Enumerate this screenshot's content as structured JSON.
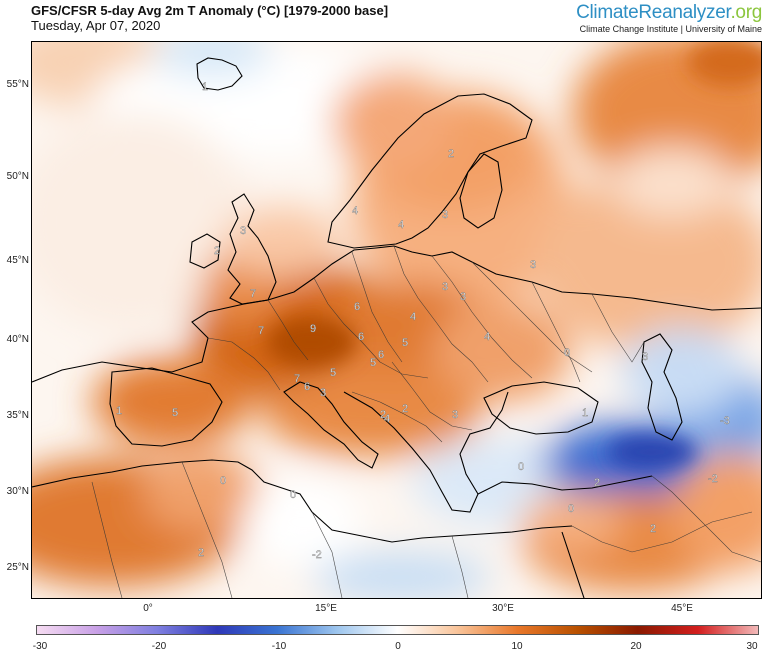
{
  "header": {
    "title": "GFS/CFSR 5-day Avg 2m T Anomaly (°C) [1979-2000 base]",
    "date": "Tuesday, Apr 07, 2020",
    "brand_part1": "Climate",
    "brand_part2": "Reanalyzer",
    "brand_part3": ".org",
    "brand_sub": "Climate Change Institute | University of Maine"
  },
  "map": {
    "lat_labels": [
      "55°N",
      "50°N",
      "45°N",
      "40°N",
      "35°N",
      "30°N",
      "25°N"
    ],
    "lon_labels": [
      "0°",
      "15°E",
      "30°E",
      "45°E"
    ],
    "anomaly_labels": [
      "1",
      "2",
      "3",
      "4",
      "4",
      "3",
      "2",
      "3",
      "7",
      "9",
      "6",
      "4",
      "3",
      "3",
      "7",
      "6",
      "6",
      "5",
      "4",
      "7",
      "6",
      "5",
      "5",
      "3",
      "2",
      "2",
      "3",
      "4",
      "0",
      "5",
      "1",
      "0",
      "0",
      "-2",
      "2",
      "-2",
      "2",
      "0",
      "2",
      "1",
      "0",
      "-3",
      "3"
    ]
  },
  "colorbar": {
    "ticks": [
      "-30",
      "-20",
      "-10",
      "0",
      "10",
      "20",
      "30"
    ],
    "range": [
      -30,
      30
    ],
    "colors": [
      "#f6dcf2",
      "#c8a0e6",
      "#7f7fe0",
      "#2e38b8",
      "#3a74d2",
      "#9ec6ee",
      "#ffffff",
      "#f9c49a",
      "#e8772a",
      "#b85000",
      "#8a1a00",
      "#d31e1e",
      "#f2b9b9"
    ]
  }
}
